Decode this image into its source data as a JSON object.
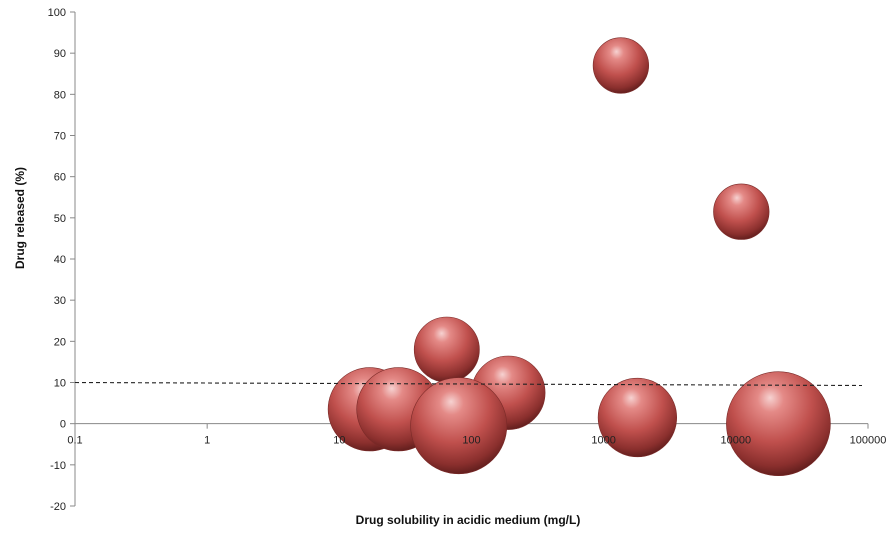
{
  "chart_data": {
    "type": "bubble",
    "xlabel": "Drug solubility in acidic medium (mg/L)",
    "ylabel": "Drug released (%)",
    "x_scale": "log",
    "xlim": [
      0.1,
      100000
    ],
    "ylim": [
      -20,
      100
    ],
    "x_ticks": [
      "0.1",
      "1",
      "10",
      "100",
      "1000",
      "10000",
      "100000"
    ],
    "y_ticks": [
      "-20",
      "-10",
      "0",
      "10",
      "20",
      "30",
      "40",
      "50",
      "60",
      "70",
      "80",
      "90",
      "100"
    ],
    "grid": false,
    "legend": "none",
    "reference_line": {
      "y": 10,
      "style": "dashed"
    },
    "bubble_color": "#c0504d",
    "points": [
      {
        "x": 1350,
        "y": 87,
        "size": 4
      },
      {
        "x": 11000,
        "y": 51.5,
        "size": 4
      },
      {
        "x": 65,
        "y": 18,
        "size": 5.5
      },
      {
        "x": 17,
        "y": 3.5,
        "size": 9
      },
      {
        "x": 28,
        "y": 3.5,
        "size": 9
      },
      {
        "x": 80,
        "y": -0.5,
        "size": 12
      },
      {
        "x": 190,
        "y": 7.5,
        "size": 7
      },
      {
        "x": 1800,
        "y": 1.5,
        "size": 8
      },
      {
        "x": 21000,
        "y": 0,
        "size": 14
      }
    ]
  }
}
